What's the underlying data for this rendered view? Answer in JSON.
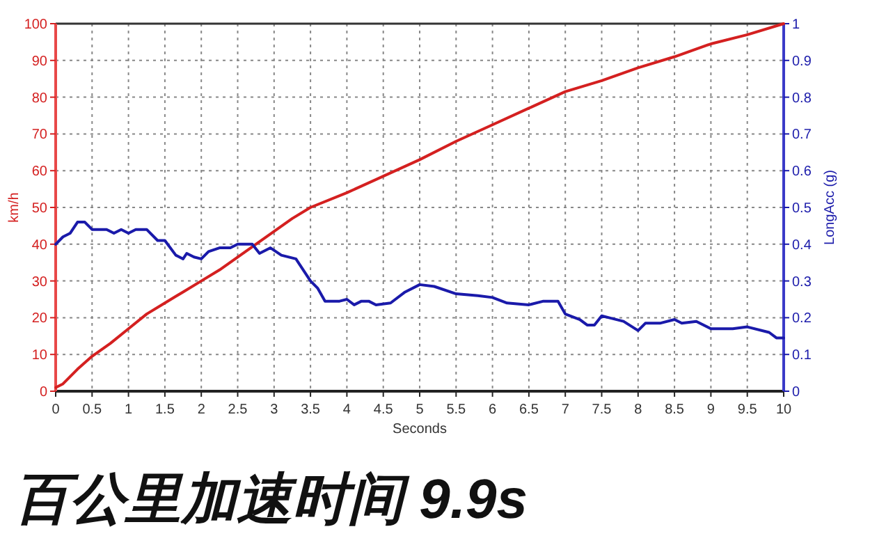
{
  "chart_data": {
    "type": "line",
    "title": "百公里加速时间 9.9s",
    "xlabel": "Seconds",
    "ylabel": "km/h",
    "y2label": "LongAcc (g)",
    "xlim": [
      0,
      10
    ],
    "xticks": [
      0,
      0.5,
      1,
      1.5,
      2,
      2.5,
      3,
      3.5,
      4,
      4.5,
      5,
      5.5,
      6,
      6.5,
      7,
      7.5,
      8,
      8.5,
      9,
      9.5,
      10
    ],
    "ylim": [
      0,
      100
    ],
    "yticks": [
      0,
      10,
      20,
      30,
      40,
      50,
      60,
      70,
      80,
      90,
      100
    ],
    "y2lim": [
      0,
      1
    ],
    "y2ticks": [
      0,
      0.1,
      0.2,
      0.3,
      0.4,
      0.5,
      0.6,
      0.7,
      0.8,
      0.9,
      1
    ],
    "grid": true,
    "series": [
      {
        "color": "#d42020",
        "axis": "y",
        "x": [
          0,
          0.1,
          0.2,
          0.3,
          0.5,
          0.75,
          1,
          1.25,
          1.5,
          1.75,
          2,
          2.25,
          2.5,
          2.75,
          3,
          3.25,
          3.5,
          4,
          4.5,
          5,
          5.5,
          6,
          6.5,
          7,
          7.5,
          8,
          8.5,
          9,
          9.5,
          10
        ],
        "values": [
          1,
          2,
          4,
          6,
          9.5,
          13,
          17,
          21,
          24,
          27,
          30,
          33,
          36.5,
          40,
          43.5,
          47,
          50,
          54,
          58.5,
          63,
          68,
          72.5,
          77,
          81.5,
          84.5,
          88,
          91,
          94.5,
          97,
          100
        ]
      },
      {
        "color": "#1a1aaa",
        "axis": "y2",
        "x": [
          0,
          0.1,
          0.2,
          0.3,
          0.4,
          0.5,
          0.7,
          0.8,
          0.9,
          1.0,
          1.1,
          1.25,
          1.4,
          1.5,
          1.65,
          1.75,
          1.8,
          1.9,
          2.0,
          2.1,
          2.25,
          2.4,
          2.5,
          2.7,
          2.8,
          2.95,
          3.1,
          3.3,
          3.5,
          3.6,
          3.7,
          3.9,
          4.0,
          4.1,
          4.2,
          4.3,
          4.4,
          4.6,
          4.8,
          5.0,
          5.2,
          5.5,
          5.8,
          6.0,
          6.2,
          6.5,
          6.7,
          6.9,
          7.0,
          7.2,
          7.3,
          7.4,
          7.5,
          7.6,
          7.8,
          8.0,
          8.1,
          8.3,
          8.5,
          8.6,
          8.8,
          9.0,
          9.3,
          9.5,
          9.8,
          9.9,
          10
        ],
        "values": [
          0.4,
          0.42,
          0.43,
          0.46,
          0.46,
          0.44,
          0.44,
          0.43,
          0.44,
          0.43,
          0.44,
          0.44,
          0.41,
          0.41,
          0.37,
          0.36,
          0.375,
          0.365,
          0.36,
          0.38,
          0.39,
          0.39,
          0.4,
          0.4,
          0.375,
          0.39,
          0.37,
          0.36,
          0.3,
          0.28,
          0.245,
          0.245,
          0.25,
          0.235,
          0.245,
          0.245,
          0.235,
          0.24,
          0.27,
          0.29,
          0.285,
          0.265,
          0.26,
          0.255,
          0.24,
          0.235,
          0.245,
          0.245,
          0.21,
          0.195,
          0.18,
          0.18,
          0.205,
          0.2,
          0.19,
          0.165,
          0.185,
          0.185,
          0.195,
          0.185,
          0.19,
          0.17,
          0.17,
          0.175,
          0.16,
          0.145,
          0.145
        ]
      }
    ]
  }
}
